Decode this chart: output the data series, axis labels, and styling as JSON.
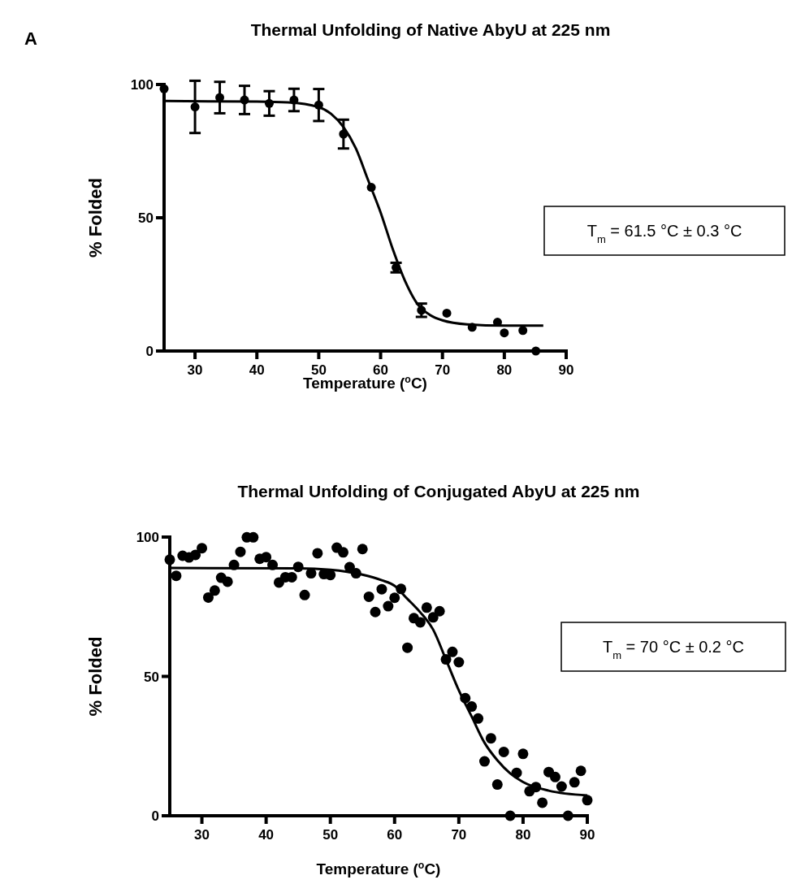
{
  "chart_data": [
    {
      "type": "scatter",
      "title": "Thermal Unfolding of Native AbyU at 225 nm",
      "xlabel": "Temperature ($^{o}$C)",
      "ylabel": "% Folded",
      "annotations": [
        "A",
        "T$_{m}$ = 61.5 °C  ± 0.3 °C"
      ],
      "xlim": [
        25,
        90
      ],
      "xticks": [
        30,
        40,
        50,
        60,
        70,
        80,
        90
      ],
      "ylim": [
        0,
        100
      ],
      "yticks": [
        0,
        50,
        100
      ],
      "marker": "circle",
      "series": [
        {
          "type": "scatter",
          "color": "#000000",
          "x": [
            25,
            30,
            34,
            38,
            42,
            46,
            50,
            54,
            58.5,
            62.5,
            66.6,
            70.7,
            74.8,
            78.9,
            80,
            83,
            85.1
          ],
          "values": [
            98.4,
            91.6,
            95.1,
            94.2,
            92.9,
            94.2,
            92.3,
            81.4,
            61.4,
            31.3,
            15.3,
            14.2,
            8.9,
            10.8,
            6.8,
            7.7,
            0
          ],
          "errors": [
            null,
            9.8,
            5.9,
            5.3,
            4.6,
            4.2,
            6,
            5.4,
            null,
            1.8,
            2.5,
            null,
            null,
            null,
            null,
            null,
            null
          ]
        },
        {
          "type": "line",
          "color": "#000000",
          "marker": "none",
          "x": [
            25,
            40,
            45,
            50,
            52,
            54,
            56,
            58,
            60,
            62,
            64,
            66,
            68,
            70,
            74,
            80,
            86.3
          ],
          "values": [
            93.8,
            93.6,
            93.3,
            91.5,
            89,
            84,
            76,
            64,
            52,
            38,
            26,
            17.5,
            13.5,
            11.5,
            10,
            9.5,
            9.5
          ]
        }
      ]
    },
    {
      "type": "scatter",
      "title": "Thermal Unfolding of Conjugated AbyU at 225 nm",
      "xlabel": "Temperature ($^{o}$C)",
      "ylabel": "% Folded",
      "annotations": [
        "T$_{m}$ = 70 °C  ± 0.2 °C"
      ],
      "xlim": [
        25,
        90
      ],
      "xticks": [
        30,
        40,
        50,
        60,
        70,
        80,
        90
      ],
      "ylim": [
        0,
        100
      ],
      "yticks": [
        0,
        50,
        100
      ],
      "marker": "circle",
      "series": [
        {
          "type": "scatter",
          "color": "#000000",
          "x": [
            25,
            26,
            27,
            28,
            29,
            30,
            31,
            32,
            33,
            34,
            35,
            36,
            37,
            38,
            39,
            40,
            41,
            42,
            43,
            44,
            45,
            46,
            47,
            48,
            49,
            50,
            51,
            52,
            53,
            54,
            55,
            56,
            57,
            58,
            59,
            60,
            61,
            62,
            63,
            64,
            65,
            66,
            67,
            68,
            69,
            70,
            71,
            72,
            73,
            74,
            75,
            76,
            77,
            78,
            79,
            80,
            81,
            82,
            83,
            84,
            85,
            86,
            87,
            88,
            89,
            90
          ],
          "values": [
            91.9,
            86.1,
            93.3,
            92.7,
            93.6,
            96.0,
            78.3,
            80.8,
            85.4,
            84.0,
            90.0,
            94.7,
            99.9,
            99.9,
            92.2,
            92.8,
            90.0,
            83.7,
            85.6,
            85.6,
            89.3,
            79.2,
            87.0,
            94.2,
            86.7,
            86.4,
            96.2,
            94.5,
            89.2,
            87.0,
            95.7,
            78.6,
            73.1,
            81.3,
            75.2,
            78.2,
            81.4,
            60.3,
            70.9,
            69.4,
            74.7,
            71.2,
            73.4,
            56.1,
            58.8,
            55.1,
            42.2,
            39.2,
            34.9,
            19.5,
            27.8,
            11.2,
            22.9,
            0,
            15.4,
            22.2,
            8.8,
            10.3,
            4.7,
            15.7,
            13.9,
            10.5,
            0,
            12.0,
            16.1,
            5.6
          ]
        },
        {
          "type": "line",
          "color": "#000000",
          "marker": "none",
          "x": [
            25,
            45,
            50,
            55,
            58,
            60,
            62,
            64,
            66,
            68,
            70,
            72,
            74,
            76,
            78,
            80,
            84,
            90
          ],
          "values": [
            88.9,
            88.8,
            88.3,
            86.5,
            84.5,
            82.5,
            77.8,
            73,
            66.8,
            56,
            45,
            35.6,
            26.2,
            19.9,
            15.2,
            12.1,
            9,
            7.3
          ]
        }
      ]
    }
  ]
}
